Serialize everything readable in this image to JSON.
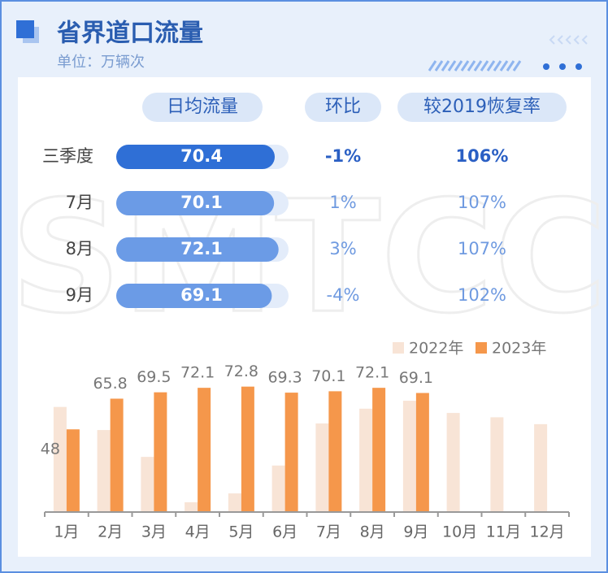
{
  "header": {
    "title": "省界道口流量",
    "unit": "单位：万辆次"
  },
  "watermark": "SMTCC",
  "table": {
    "columns": [
      "日均流量",
      "环比",
      "较2019恢复率"
    ],
    "rows": [
      {
        "label": "三季度",
        "value": 70.4,
        "change": "-1%",
        "recovery": "106%"
      },
      {
        "label": "7月",
        "value": 70.1,
        "change": "1%",
        "recovery": "107%"
      },
      {
        "label": "8月",
        "value": 72.1,
        "change": "3%",
        "recovery": "107%"
      },
      {
        "label": "9月",
        "value": 69.1,
        "change": "-4%",
        "recovery": "102%"
      }
    ]
  },
  "chart_data": {
    "type": "bar",
    "categories": [
      "1月",
      "2月",
      "3月",
      "4月",
      "5月",
      "6月",
      "7月",
      "8月",
      "9月",
      "10月",
      "11月",
      "12月"
    ],
    "series": [
      {
        "name": "2022年",
        "color": "#f8e4d6",
        "labels": false,
        "values": [
          61,
          47.6,
          32,
          5.7,
          10.8,
          27,
          51.4,
          60,
          64.6,
          57.5,
          55,
          51
        ]
      },
      {
        "name": "2023年",
        "color": "#f5974b",
        "labels": true,
        "values": [
          48,
          65.8,
          69.5,
          72.1,
          72.8,
          69.3,
          70.1,
          72.1,
          69.1,
          null,
          null,
          null
        ]
      }
    ],
    "ylim": [
      0,
      80
    ]
  }
}
